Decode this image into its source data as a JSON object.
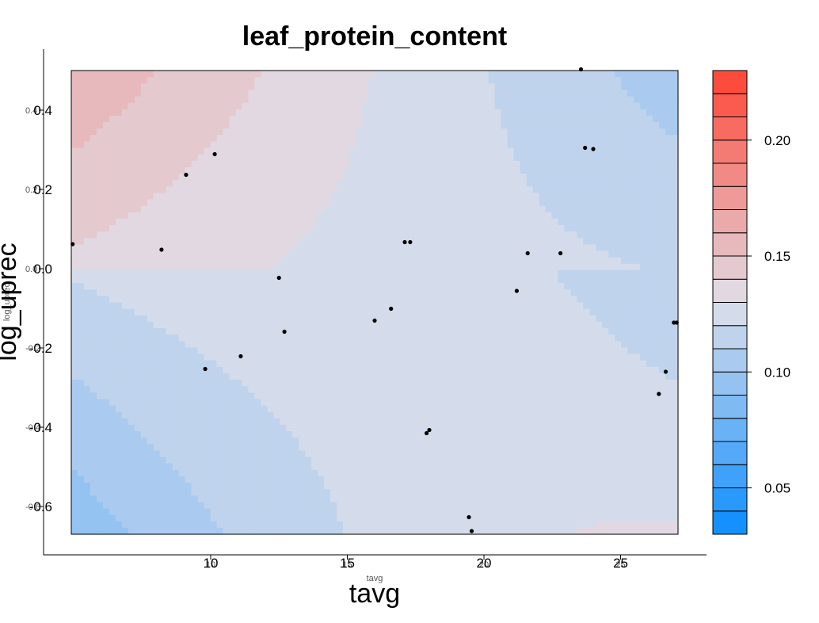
{
  "chart_data": {
    "type": "heatmap",
    "title": "leaf_protein_content",
    "xlabel": "tavg",
    "ylabel": "log_uprec",
    "xlabel_small": "tavg",
    "ylabel_small": "log_uprec",
    "xlim": [
      4.9,
      27.1
    ],
    "ylim": [
      -0.67,
      0.5
    ],
    "x_ticks": [
      10,
      15,
      20,
      25
    ],
    "y_ticks": [
      0.4,
      0.2,
      0.0,
      -0.2,
      -0.4,
      -0.6
    ],
    "x_tick_labels": [
      "10",
      "15",
      "20",
      "25"
    ],
    "y_tick_labels": [
      "0.4",
      "0.2",
      "0.0",
      "-0.2",
      "-0.4",
      "-0.6"
    ],
    "y_ghost_labels": [
      "0.4",
      "0.2",
      "0.0",
      "-0.2",
      "-0.4",
      "-0.6"
    ],
    "colorbar": {
      "min": 0.03,
      "max": 0.23,
      "levels": 20,
      "ticks": [
        0.05,
        0.1,
        0.15,
        0.2
      ],
      "tick_labels": [
        "0.05",
        "0.10",
        "0.15",
        "0.20"
      ],
      "low_color": "#0a8cff",
      "mid_color": "#dfe0ea",
      "high_color": "#ff4433"
    },
    "points": [
      {
        "x": 4.95,
        "y": 0.062
      },
      {
        "x": 8.2,
        "y": 0.048
      },
      {
        "x": 9.1,
        "y": 0.237
      },
      {
        "x": 10.15,
        "y": 0.289
      },
      {
        "x": 9.8,
        "y": -0.253
      },
      {
        "x": 11.1,
        "y": -0.221
      },
      {
        "x": 12.5,
        "y": -0.023
      },
      {
        "x": 12.7,
        "y": -0.159
      },
      {
        "x": 16.0,
        "y": -0.131
      },
      {
        "x": 16.6,
        "y": -0.101
      },
      {
        "x": 17.1,
        "y": 0.067
      },
      {
        "x": 17.3,
        "y": 0.067
      },
      {
        "x": 17.9,
        "y": -0.415
      },
      {
        "x": 18.0,
        "y": -0.407
      },
      {
        "x": 19.45,
        "y": -0.627
      },
      {
        "x": 19.55,
        "y": -0.662
      },
      {
        "x": 21.2,
        "y": -0.056
      },
      {
        "x": 21.6,
        "y": 0.039
      },
      {
        "x": 22.8,
        "y": 0.039
      },
      {
        "x": 23.55,
        "y": 0.503
      },
      {
        "x": 23.7,
        "y": 0.305
      },
      {
        "x": 24.0,
        "y": 0.302
      },
      {
        "x": 26.4,
        "y": -0.316
      },
      {
        "x": 26.65,
        "y": -0.26
      },
      {
        "x": 26.95,
        "y": -0.136
      },
      {
        "x": 27.05,
        "y": -0.136
      }
    ]
  }
}
